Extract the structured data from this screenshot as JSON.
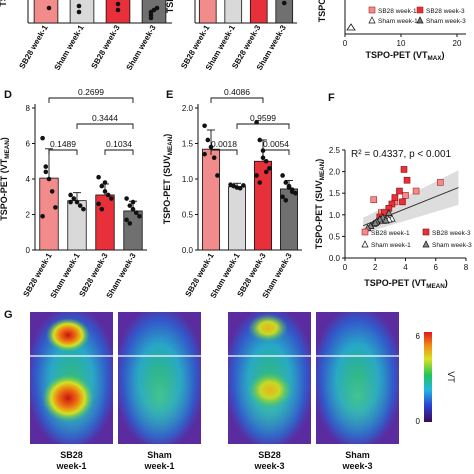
{
  "chart_data": [
    {
      "panel": "top-left-partial",
      "type": "bar",
      "categories": [
        "SB28 week-1",
        "Sham week-1",
        "SB28 week-3",
        "Sham week-3"
      ],
      "ylabel_fragment": "TS",
      "colors": [
        "#f28b8b",
        "#d9d9d9",
        "#e8303a",
        "#707070"
      ]
    },
    {
      "panel": "top-middle-partial",
      "type": "bar",
      "categories": [
        "SB28 week-1",
        "Sham week-1",
        "SB28 week-3",
        "Sham week-3"
      ],
      "ylabel_fragment": "TSPO",
      "colors": [
        "#f28b8b",
        "#d9d9d9",
        "#e8303a",
        "#707070"
      ]
    },
    {
      "panel": "top-right-partial",
      "type": "scatter",
      "ylabel_fragment": "TSPO",
      "xlabel": "TSPO-PET (VT",
      "xlabel_sub": "MAX",
      "xticks": [
        "0",
        "10",
        "20"
      ],
      "legend": [
        "SB28 week-1",
        "SB28 week-3",
        "Sham week-1",
        "Sham week-3"
      ]
    },
    {
      "panel": "D",
      "type": "bar",
      "categories": [
        "SB28 week-1",
        "Sham week-1",
        "SB28 week-3",
        "Sham week-3"
      ],
      "values": [
        4.05,
        2.78,
        3.1,
        2.2
      ],
      "errors": [
        1.65,
        0.45,
        0.62,
        0.55
      ],
      "ylabel": "TSPO-PET (VT",
      "ylabel_sub": "MEAN",
      "ylim": [
        0,
        8
      ],
      "yticks": [
        "0",
        "2",
        "4",
        "6",
        "8"
      ],
      "points": [
        [
          6.3,
          4.7,
          4.0,
          3.3,
          2.4,
          1.9,
          4.4
        ],
        [
          3.1,
          2.9,
          2.7,
          2.5,
          2.3,
          2.7
        ],
        [
          4.1,
          3.6,
          3.3,
          3.1,
          2.9,
          2.6,
          2.3,
          3.8
        ],
        [
          2.9,
          2.5,
          2.3,
          2.1,
          1.9,
          1.7,
          1.5,
          2.7
        ]
      ],
      "brackets": [
        {
          "from": 0,
          "to": 3,
          "label": "0.2699"
        },
        {
          "from": 1,
          "to": 3,
          "label": "0.3444"
        },
        {
          "from": 0,
          "to": 1,
          "label": "0.1489"
        },
        {
          "from": 2,
          "to": 3,
          "label": "0.1034"
        }
      ]
    },
    {
      "panel": "E",
      "type": "bar",
      "categories": [
        "SB28 week-1",
        "Sham week-1",
        "SB28 week-3",
        "Sham week-3"
      ],
      "values": [
        1.42,
        0.89,
        1.25,
        0.86
      ],
      "errors": [
        0.27,
        0.05,
        0.3,
        0.12
      ],
      "ylabel": "TSPO-PET (SUV",
      "ylabel_sub": "MEAN",
      "ylim": [
        0,
        2.0
      ],
      "yticks": [
        "0.0",
        "0.5",
        "1.0",
        "1.5",
        "2.0"
      ],
      "points": [
        [
          1.75,
          1.55,
          1.45,
          1.3,
          1.05,
          1.35
        ],
        [
          0.92,
          0.9,
          0.88,
          0.87,
          0.91
        ],
        [
          1.8,
          1.55,
          1.4,
          1.25,
          1.15,
          1.05,
          0.95,
          1.3,
          1.1
        ],
        [
          1.05,
          0.95,
          0.9,
          0.85,
          0.8,
          0.75,
          0.7,
          0.88,
          0.82
        ]
      ],
      "brackets": [
        {
          "from": 0,
          "to": 2,
          "label": "0.4086"
        },
        {
          "from": 1,
          "to": 3,
          "label": "0.9599"
        },
        {
          "from": 0,
          "to": 1,
          "label": "0.0018"
        },
        {
          "from": 2,
          "to": 3,
          "label": "0.0054"
        }
      ]
    },
    {
      "panel": "F",
      "type": "scatter",
      "annotation": "R² = 0.4337, p < 0.001",
      "xlabel": "TSPO-PET (VT",
      "xlabel_sub": "MEAN",
      "ylabel": "TSPO-PET (SUV",
      "ylabel_sub": "MEAN",
      "xlim": [
        0,
        8
      ],
      "ylim": [
        0,
        2.5
      ],
      "xticks": [
        "0",
        "2",
        "4",
        "6",
        "8"
      ],
      "yticks": [
        "0.0",
        "0.5",
        "1.0",
        "1.5",
        "2.0",
        "2.5"
      ],
      "regression": {
        "slope": 0.14,
        "intercept": 0.58
      },
      "series": [
        {
          "name": "SB28 week-1",
          "marker": "square-light",
          "points": [
            [
              6.3,
              1.75
            ],
            [
              4.7,
              1.55
            ],
            [
              4.0,
              1.45
            ],
            [
              3.3,
              1.3
            ],
            [
              2.4,
              1.05
            ],
            [
              1.9,
              1.35
            ]
          ]
        },
        {
          "name": "SB28 week-3",
          "marker": "square-dark",
          "points": [
            [
              4.1,
              1.8
            ],
            [
              3.6,
              1.55
            ],
            [
              3.3,
              1.4
            ],
            [
              3.1,
              1.25
            ],
            [
              2.9,
              1.15
            ],
            [
              2.6,
              1.05
            ],
            [
              2.3,
              0.95
            ],
            [
              3.8,
              1.3
            ],
            [
              3.9,
              2.05
            ]
          ]
        },
        {
          "name": "Sham week-1",
          "marker": "triangle-light",
          "points": [
            [
              3.1,
              0.92
            ],
            [
              2.9,
              0.9
            ],
            [
              2.7,
              0.88
            ],
            [
              2.5,
              0.87
            ],
            [
              2.3,
              0.91
            ]
          ]
        },
        {
          "name": "Sham week-3",
          "marker": "triangle-dark",
          "points": [
            [
              2.9,
              1.05
            ],
            [
              2.5,
              0.95
            ],
            [
              2.3,
              0.9
            ],
            [
              2.1,
              0.85
            ],
            [
              1.9,
              0.8
            ],
            [
              1.7,
              0.75
            ],
            [
              1.5,
              0.7
            ],
            [
              2.7,
              0.88
            ],
            [
              2.0,
              0.82
            ]
          ]
        }
      ]
    },
    {
      "panel": "G",
      "type": "heatmap",
      "images": [
        {
          "label_line1": "SB28",
          "label_line2": "week-1",
          "hot": 1.0
        },
        {
          "label_line1": "Sham",
          "label_line2": "week-1",
          "hot": 0.0
        },
        {
          "label_line1": "SB28",
          "label_line2": "week-3",
          "hot": 0.7
        },
        {
          "label_line1": "Sham",
          "label_line2": "week-3",
          "hot": 0.0
        }
      ],
      "colorbar": {
        "label": "VT",
        "max_label": "6",
        "min_label": "0",
        "colors": [
          "#3a0a55",
          "#2b3fd6",
          "#22b6e0",
          "#1fc45a",
          "#d9e21f",
          "#f08a16",
          "#e01818"
        ]
      }
    }
  ],
  "panel_letters": {
    "d": "D",
    "e": "E",
    "f": "F",
    "g": "G"
  }
}
